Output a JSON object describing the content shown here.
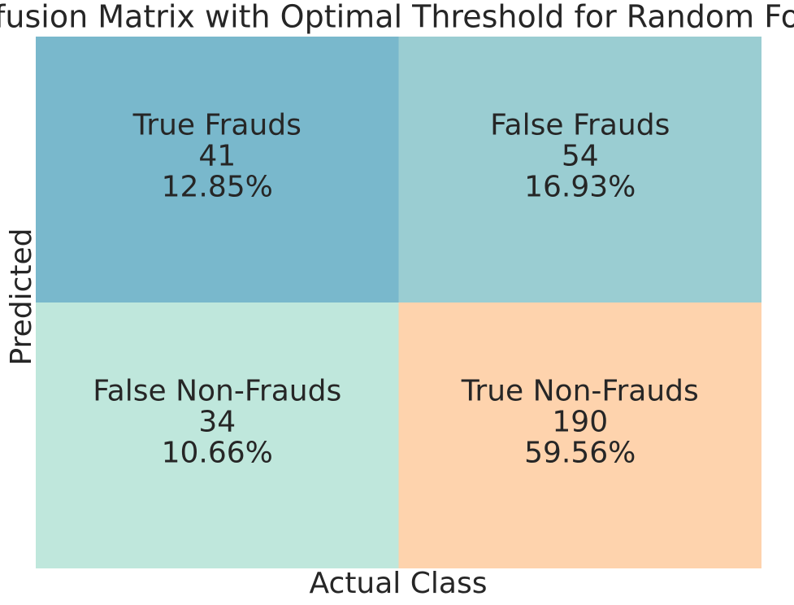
{
  "chart_data": {
    "type": "heatmap",
    "title": "Confusion Matrix with Optimal Threshold for Random Forest",
    "xlabel": "Actual Class",
    "ylabel": "Predicted",
    "cell_names": [
      [
        "True Frauds",
        "False Frauds"
      ],
      [
        "False Non-Frauds",
        "True Non-Frauds"
      ]
    ],
    "values": [
      [
        41,
        54
      ],
      [
        34,
        190
      ]
    ],
    "percents": [
      [
        12.85,
        16.93
      ],
      [
        10.66,
        59.56
      ]
    ],
    "percent_labels": [
      [
        "12.85%",
        "16.93%"
      ],
      [
        "10.66%",
        "59.56%"
      ]
    ],
    "colors": [
      [
        "#79b8cc",
        "#9acdd2"
      ],
      [
        "#bfe7dc",
        "#fed3ad"
      ]
    ]
  }
}
